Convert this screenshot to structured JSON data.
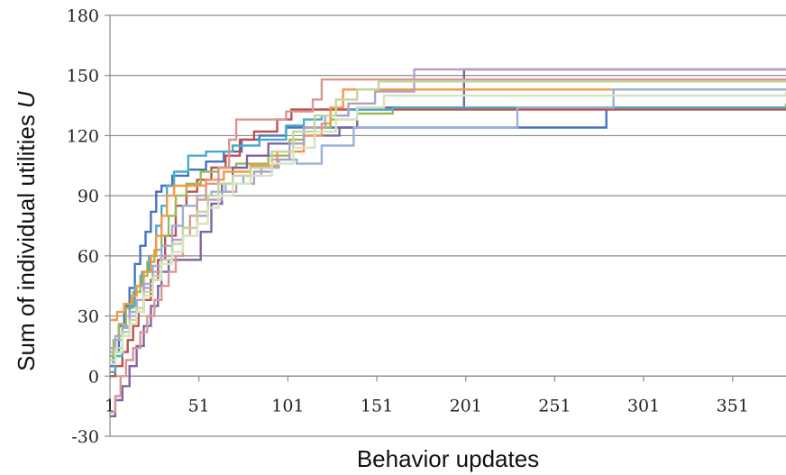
{
  "chart_data": {
    "type": "line",
    "xlabel": "Behavior updates",
    "ylabel_prefix": "Sum of individual utilities ",
    "ylabel_var": "U",
    "xlim": [
      1,
      381
    ],
    "ylim": [
      -30,
      180
    ],
    "yticks": [
      -30,
      0,
      30,
      60,
      90,
      120,
      150,
      180
    ],
    "xticks": [
      1,
      51,
      101,
      151,
      201,
      251,
      301,
      351
    ],
    "ytick_labels": [
      "-30",
      "0",
      "30",
      "60",
      "90",
      "120",
      "150",
      "180"
    ],
    "xtick_labels": [
      "1",
      "51",
      "101",
      "151",
      "201",
      "251",
      "301",
      "351"
    ],
    "grid": "horizontal",
    "series": [
      {
        "color": "#4472c4",
        "step": true,
        "points": [
          [
            1,
            5
          ],
          [
            3,
            12
          ],
          [
            6,
            25
          ],
          [
            9,
            35
          ],
          [
            12,
            44
          ],
          [
            15,
            56
          ],
          [
            18,
            65
          ],
          [
            21,
            72
          ],
          [
            24,
            82
          ],
          [
            27,
            92
          ],
          [
            30,
            95
          ],
          [
            36,
            100
          ],
          [
            45,
            103
          ],
          [
            55,
            107
          ],
          [
            65,
            112
          ],
          [
            75,
            118
          ],
          [
            85,
            120
          ],
          [
            100,
            124
          ],
          [
            130,
            124
          ],
          [
            175,
            124
          ],
          [
            278,
            124
          ],
          [
            280,
            134
          ],
          [
            381,
            134
          ]
        ]
      },
      {
        "color": "#c0504d",
        "step": true,
        "points": [
          [
            1,
            0
          ],
          [
            4,
            5
          ],
          [
            8,
            12
          ],
          [
            11,
            18
          ],
          [
            14,
            25
          ],
          [
            17,
            32
          ],
          [
            20,
            38
          ],
          [
            24,
            48
          ],
          [
            28,
            58
          ],
          [
            32,
            70
          ],
          [
            38,
            85
          ],
          [
            44,
            92
          ],
          [
            50,
            98
          ],
          [
            58,
            104
          ],
          [
            66,
            110
          ],
          [
            74,
            118
          ],
          [
            82,
            122
          ],
          [
            95,
            128
          ],
          [
            103,
            133
          ],
          [
            381,
            133
          ]
        ]
      },
      {
        "color": "#9bbb59",
        "step": true,
        "points": [
          [
            1,
            10
          ],
          [
            3,
            18
          ],
          [
            6,
            26
          ],
          [
            10,
            34
          ],
          [
            14,
            42
          ],
          [
            18,
            50
          ],
          [
            22,
            57
          ],
          [
            26,
            63
          ],
          [
            30,
            70
          ],
          [
            34,
            80
          ],
          [
            38,
            90
          ],
          [
            44,
            96
          ],
          [
            52,
            102
          ],
          [
            62,
            104
          ],
          [
            72,
            106
          ],
          [
            90,
            110
          ],
          [
            102,
            118
          ],
          [
            110,
            124
          ],
          [
            125,
            128
          ],
          [
            140,
            131
          ],
          [
            160,
            134
          ],
          [
            381,
            136
          ]
        ]
      },
      {
        "color": "#8064a2",
        "step": true,
        "points": [
          [
            1,
            -20
          ],
          [
            4,
            -12
          ],
          [
            8,
            -5
          ],
          [
            12,
            5
          ],
          [
            16,
            15
          ],
          [
            20,
            25
          ],
          [
            24,
            35
          ],
          [
            28,
            45
          ],
          [
            30,
            52
          ],
          [
            34,
            58
          ],
          [
            48,
            58
          ],
          [
            52,
            72
          ],
          [
            58,
            86
          ],
          [
            64,
            96
          ],
          [
            70,
            104
          ],
          [
            78,
            110
          ],
          [
            90,
            116
          ],
          [
            110,
            120
          ],
          [
            130,
            124
          ],
          [
            140,
            134
          ],
          [
            170,
            134
          ],
          [
            200,
            153
          ],
          [
            381,
            153
          ]
        ]
      },
      {
        "color": "#4bacc6",
        "step": true,
        "points": [
          [
            1,
            2
          ],
          [
            4,
            10
          ],
          [
            8,
            22
          ],
          [
            12,
            35
          ],
          [
            15,
            45
          ],
          [
            19,
            52
          ],
          [
            23,
            60
          ],
          [
            27,
            75
          ],
          [
            30,
            85
          ],
          [
            33,
            95
          ],
          [
            37,
            102
          ],
          [
            45,
            110
          ],
          [
            55,
            112
          ],
          [
            70,
            115
          ],
          [
            85,
            118
          ],
          [
            100,
            125
          ],
          [
            110,
            128
          ],
          [
            120,
            130
          ],
          [
            135,
            133
          ],
          [
            160,
            134
          ],
          [
            381,
            134
          ]
        ]
      },
      {
        "color": "#f79646",
        "step": true,
        "points": [
          [
            1,
            28
          ],
          [
            5,
            32
          ],
          [
            9,
            36
          ],
          [
            13,
            40
          ],
          [
            16,
            45
          ],
          [
            20,
            52
          ],
          [
            24,
            60
          ],
          [
            27,
            70
          ],
          [
            30,
            80
          ],
          [
            33,
            90
          ],
          [
            37,
            95
          ],
          [
            45,
            95
          ],
          [
            55,
            98
          ],
          [
            65,
            102
          ],
          [
            80,
            105
          ],
          [
            95,
            112
          ],
          [
            110,
            120
          ],
          [
            120,
            126
          ],
          [
            125,
            134
          ],
          [
            132,
            143
          ],
          [
            140,
            143
          ],
          [
            226,
            143
          ],
          [
            381,
            143
          ]
        ]
      },
      {
        "color": "#95b3d7",
        "step": true,
        "points": [
          [
            1,
            12
          ],
          [
            4,
            18
          ],
          [
            8,
            24
          ],
          [
            12,
            30
          ],
          [
            16,
            38
          ],
          [
            20,
            46
          ],
          [
            25,
            55
          ],
          [
            30,
            65
          ],
          [
            36,
            75
          ],
          [
            42,
            85
          ],
          [
            50,
            90
          ],
          [
            58,
            92
          ],
          [
            66,
            96
          ],
          [
            76,
            100
          ],
          [
            86,
            104
          ],
          [
            96,
            108
          ],
          [
            106,
            106
          ],
          [
            120,
            115
          ],
          [
            138,
            124
          ],
          [
            230,
            134
          ],
          [
            284,
            143
          ],
          [
            381,
            143
          ]
        ]
      },
      {
        "color": "#d99694",
        "step": true,
        "points": [
          [
            1,
            -18
          ],
          [
            4,
            -10
          ],
          [
            7,
            0
          ],
          [
            10,
            8
          ],
          [
            14,
            14
          ],
          [
            18,
            22
          ],
          [
            22,
            30
          ],
          [
            26,
            38
          ],
          [
            30,
            45
          ],
          [
            34,
            52
          ],
          [
            38,
            60
          ],
          [
            42,
            70
          ],
          [
            46,
            80
          ],
          [
            50,
            88
          ],
          [
            55,
            96
          ],
          [
            62,
            104
          ],
          [
            68,
            118
          ],
          [
            72,
            128
          ],
          [
            85,
            128
          ],
          [
            100,
            132
          ],
          [
            115,
            138
          ],
          [
            120,
            148
          ],
          [
            140,
            148
          ],
          [
            381,
            148
          ]
        ]
      },
      {
        "color": "#b2a1c7",
        "step": true,
        "points": [
          [
            1,
            14
          ],
          [
            4,
            20
          ],
          [
            8,
            25
          ],
          [
            12,
            32
          ],
          [
            16,
            38
          ],
          [
            20,
            44
          ],
          [
            25,
            52
          ],
          [
            30,
            60
          ],
          [
            36,
            68
          ],
          [
            42,
            74
          ],
          [
            50,
            80
          ],
          [
            56,
            88
          ],
          [
            64,
            92
          ],
          [
            72,
            96
          ],
          [
            82,
            102
          ],
          [
            92,
            108
          ],
          [
            102,
            116
          ],
          [
            110,
            124
          ],
          [
            122,
            130
          ],
          [
            135,
            136
          ],
          [
            150,
            142
          ],
          [
            172,
            153
          ],
          [
            381,
            153
          ]
        ]
      },
      {
        "color": "#c3d69b",
        "step": true,
        "points": [
          [
            1,
            8
          ],
          [
            4,
            14
          ],
          [
            8,
            22
          ],
          [
            12,
            28
          ],
          [
            16,
            34
          ],
          [
            20,
            42
          ],
          [
            25,
            50
          ],
          [
            30,
            58
          ],
          [
            36,
            66
          ],
          [
            42,
            74
          ],
          [
            50,
            82
          ],
          [
            56,
            90
          ],
          [
            62,
            96
          ],
          [
            70,
            100
          ],
          [
            80,
            104
          ],
          [
            92,
            112
          ],
          [
            104,
            122
          ],
          [
            116,
            130
          ],
          [
            128,
            138
          ],
          [
            140,
            143
          ],
          [
            152,
            147
          ],
          [
            381,
            147
          ]
        ]
      },
      {
        "color": "#d7e4bd",
        "step": true,
        "points": [
          [
            1,
            6
          ],
          [
            4,
            12
          ],
          [
            8,
            20
          ],
          [
            12,
            26
          ],
          [
            16,
            32
          ],
          [
            20,
            40
          ],
          [
            25,
            48
          ],
          [
            30,
            56
          ],
          [
            36,
            62
          ],
          [
            42,
            70
          ],
          [
            50,
            76
          ],
          [
            56,
            84
          ],
          [
            62,
            90
          ],
          [
            70,
            96
          ],
          [
            80,
            100
          ],
          [
            92,
            106
          ],
          [
            104,
            114
          ],
          [
            116,
            122
          ],
          [
            128,
            128
          ],
          [
            140,
            134
          ],
          [
            155,
            140
          ],
          [
            381,
            142
          ]
        ]
      }
    ]
  }
}
